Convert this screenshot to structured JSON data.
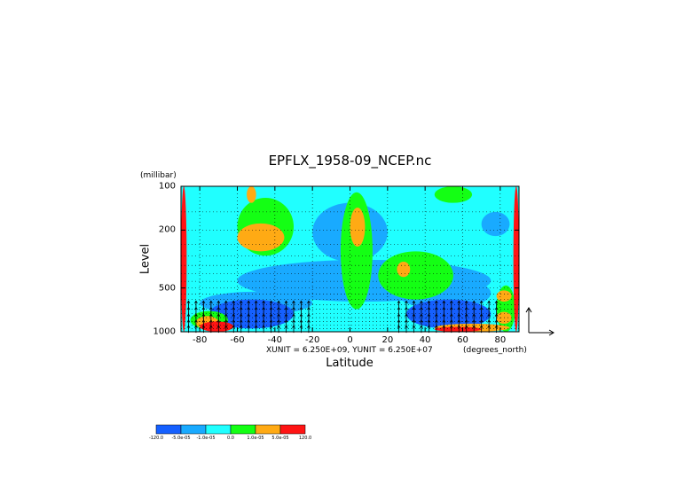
{
  "chart_data": {
    "type": "heatmap",
    "title": "EPFLX_1958-09_NCEP.nc",
    "xlabel": "Latitude",
    "ylabel": "Level",
    "yunit": "(millibar)",
    "xunit": "(degrees_north)",
    "vector_scale": "XUNIT = 6.250E+09, YUNIT = 6.250E+07",
    "xlim": [
      -90,
      90
    ],
    "ylim": [
      1000,
      100
    ],
    "y_scale": "log",
    "x_ticks": [
      -80,
      -60,
      -40,
      -20,
      0,
      20,
      40,
      60,
      80
    ],
    "y_ticks": [
      100,
      200,
      500,
      1000
    ],
    "grid": true,
    "colorbar": {
      "boundaries": [
        "-120.0",
        "-5.0e-05",
        "-1.0e-05",
        "0.0",
        "1.0e-05",
        "5.0e-05",
        "120.0"
      ],
      "colors": [
        "#1560ff",
        "#19aaff",
        "#20ffff",
        "#14ff14",
        "#ffaa14",
        "#ff1414"
      ],
      "placement": "bottom-left"
    },
    "background_class": 2,
    "patches": [
      {
        "class": 1,
        "x": [
          -60,
          75
        ],
        "p": [
          320,
          620
        ]
      },
      {
        "class": 1,
        "x": [
          -80,
          -20
        ],
        "p": [
          530,
          760
        ]
      },
      {
        "class": 1,
        "x": [
          25,
          75
        ],
        "p": [
          420,
          700
        ]
      },
      {
        "class": 1,
        "x": [
          -20,
          20
        ],
        "p": [
          130,
          330
        ]
      },
      {
        "class": 1,
        "x": [
          70,
          85
        ],
        "p": [
          150,
          220
        ]
      },
      {
        "class": 0,
        "x": [
          -75,
          -30
        ],
        "p": [
          600,
          950
        ]
      },
      {
        "class": 0,
        "x": [
          30,
          75
        ],
        "p": [
          600,
          950
        ]
      },
      {
        "class": 3,
        "x": [
          -60,
          -30
        ],
        "p": [
          120,
          300
        ]
      },
      {
        "class": 3,
        "x": [
          -5,
          12
        ],
        "p": [
          110,
          700
        ]
      },
      {
        "class": 3,
        "x": [
          15,
          55
        ],
        "p": [
          280,
          600
        ]
      },
      {
        "class": 3,
        "x": [
          45,
          65
        ],
        "p": [
          100,
          130
        ]
      },
      {
        "class": 3,
        "x": [
          -85,
          -65
        ],
        "p": [
          720,
          960
        ]
      },
      {
        "class": 3,
        "x": [
          78,
          88
        ],
        "p": [
          480,
          1000
        ]
      },
      {
        "class": 4,
        "x": [
          -60,
          -35
        ],
        "p": [
          180,
          280
        ]
      },
      {
        "class": 4,
        "x": [
          -55,
          -50
        ],
        "p": [
          100,
          130
        ]
      },
      {
        "class": 4,
        "x": [
          0,
          8
        ],
        "p": [
          140,
          260
        ]
      },
      {
        "class": 4,
        "x": [
          25,
          32
        ],
        "p": [
          330,
          420
        ]
      },
      {
        "class": 4,
        "x": [
          78,
          86
        ],
        "p": [
          520,
          620
        ]
      },
      {
        "class": 4,
        "x": [
          78,
          86
        ],
        "p": [
          730,
          880
        ]
      },
      {
        "class": 4,
        "x": [
          45,
          85
        ],
        "p": [
          880,
          1000
        ]
      },
      {
        "class": 4,
        "x": [
          -82,
          -70
        ],
        "p": [
          780,
          960
        ]
      },
      {
        "class": 5,
        "x": [
          -90,
          -87
        ],
        "p": [
          100,
          1000
        ]
      },
      {
        "class": 5,
        "x": [
          87,
          90
        ],
        "p": [
          100,
          1000
        ]
      },
      {
        "class": 5,
        "x": [
          45,
          70
        ],
        "p": [
          925,
          1000
        ]
      },
      {
        "class": 5,
        "x": [
          -80,
          -62
        ],
        "p": [
          850,
          1000
        ]
      }
    ],
    "vectors": {
      "x": [
        -86,
        -82,
        -78,
        -74,
        -70,
        -66,
        -62,
        -58,
        -54,
        -50,
        -46,
        -42,
        -38,
        -34,
        -30,
        -26,
        -22,
        26,
        30,
        34,
        38,
        42,
        46,
        50,
        54,
        58,
        62,
        66,
        70,
        74,
        78
      ],
      "p": [
        650,
        720,
        800,
        880,
        960
      ],
      "u": 0,
      "v": 1
    }
  }
}
